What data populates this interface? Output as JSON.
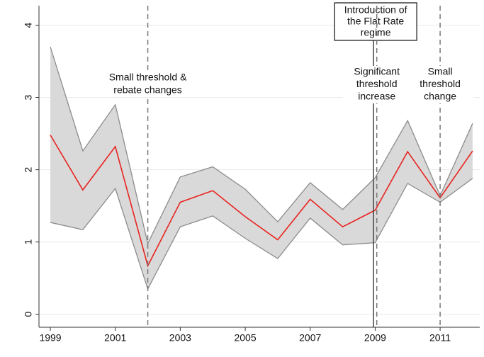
{
  "chart_data": {
    "type": "band-line",
    "x": [
      1999,
      2000,
      2001,
      2002,
      2003,
      2004,
      2005,
      2006,
      2007,
      2008,
      2009,
      2010,
      2011,
      2012
    ],
    "values": [
      2.48,
      1.72,
      2.32,
      0.67,
      1.55,
      1.71,
      1.35,
      1.03,
      1.59,
      1.21,
      1.44,
      2.25,
      1.61,
      2.26
    ],
    "upper": [
      3.7,
      2.26,
      2.9,
      0.98,
      1.9,
      2.04,
      1.73,
      1.28,
      1.82,
      1.45,
      1.89,
      2.68,
      1.64,
      2.64
    ],
    "lower": [
      1.27,
      1.17,
      1.74,
      0.35,
      1.21,
      1.36,
      1.05,
      0.77,
      1.33,
      0.96,
      0.99,
      1.81,
      1.55,
      1.88
    ],
    "color": "#e8231f",
    "band_color": "#d9d9d9",
    "band_edge": "#8c8c8c",
    "xlim": [
      1998.65,
      2012.22
    ],
    "xticks": [
      1999,
      2001,
      2003,
      2005,
      2007,
      2009,
      2011
    ],
    "ylim": [
      -0.18,
      4.27
    ],
    "yticks": [
      0,
      1,
      2,
      3,
      4
    ],
    "grid": true,
    "vlines": [
      {
        "x": 2002,
        "style": "dashed",
        "label": [
          "Small threshold &",
          "rebate changes"
        ]
      },
      {
        "x": 2008.95,
        "style": "solid",
        "boxed": true,
        "label": [
          "Introduction of",
          "the Flat Rate",
          "regime"
        ]
      },
      {
        "x": 2009.05,
        "style": "dashed",
        "label": [
          "Significant",
          "threshold",
          "increase"
        ]
      },
      {
        "x": 2011,
        "style": "dashed",
        "label": [
          "Small",
          "threshold",
          "change"
        ]
      }
    ]
  }
}
